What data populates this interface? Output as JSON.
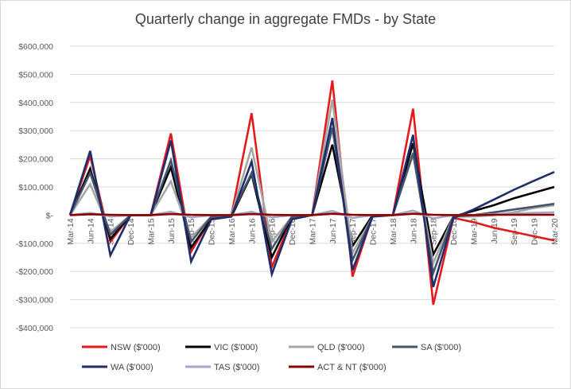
{
  "chart_data": {
    "type": "line",
    "title": "Quarterly change in aggregate FMDs - by State",
    "xlabel": "",
    "ylabel": "",
    "categories": [
      "Mar-14",
      "Jun-14",
      "Sep-14",
      "Dec-14",
      "Mar-15",
      "Jun-15",
      "Sep-15",
      "Dec-15",
      "Mar-16",
      "Jun-16",
      "Sep-16",
      "Dec-16",
      "Mar-17",
      "Jun-17",
      "Sep-17",
      "Dec-17",
      "Mar-18",
      "Jun-18",
      "Sep-18",
      "Dec-18",
      "Mar-19",
      "Jun-19",
      "Sep-19",
      "Dec-19",
      "Mar-20"
    ],
    "ylim": [
      -400000,
      600000
    ],
    "yticks": [
      600000,
      500000,
      400000,
      300000,
      200000,
      100000,
      0,
      -100000,
      -200000,
      -300000,
      -400000
    ],
    "ytick_labels": [
      "$600,000",
      "$500,000",
      "$400,000",
      "$300,000",
      "$200,000",
      "$100,000",
      "$-",
      "-$100,000",
      "-$200,000",
      "-$300,000",
      "-$400,000"
    ],
    "legend_position": "bottom",
    "grid": true,
    "series": [
      {
        "name": "NSW ($'000)",
        "color": "#e31a1c",
        "width": 2.6,
        "values": [
          0,
          210000,
          -95000,
          0,
          0,
          290000,
          -130000,
          -10000,
          0,
          362000,
          -185000,
          -10000,
          0,
          478000,
          -218000,
          0,
          0,
          378000,
          -318000,
          -10000,
          -25000,
          -45000,
          -60000,
          -75000,
          -90000
        ]
      },
      {
        "name": "VIC ($'000)",
        "color": "#000000",
        "width": 2.6,
        "values": [
          0,
          165000,
          -85000,
          0,
          0,
          170000,
          -115000,
          -15000,
          -5000,
          145000,
          -150000,
          -5000,
          0,
          250000,
          -110000,
          0,
          0,
          255000,
          -140000,
          -5000,
          15000,
          35000,
          60000,
          80000,
          100000
        ]
      },
      {
        "name": "QLD ($'000)",
        "color": "#a6a6a6",
        "width": 2.6,
        "values": [
          0,
          110000,
          -60000,
          0,
          0,
          120000,
          -80000,
          -5000,
          0,
          240000,
          -95000,
          -5000,
          0,
          410000,
          -135000,
          -5000,
          0,
          215000,
          -170000,
          -5000,
          -5000,
          0,
          10000,
          25000,
          35000
        ]
      },
      {
        "name": "SA ($'000)",
        "color": "#44546a",
        "width": 2.6,
        "values": [
          0,
          150000,
          -70000,
          0,
          0,
          195000,
          -95000,
          -5000,
          0,
          150000,
          -120000,
          -5000,
          0,
          310000,
          -160000,
          -5000,
          0,
          220000,
          -205000,
          -5000,
          0,
          10000,
          20000,
          30000,
          40000
        ]
      },
      {
        "name": "WA ($'000)",
        "color": "#1f2d6b",
        "width": 2.6,
        "values": [
          0,
          228000,
          -143000,
          0,
          0,
          265000,
          -165000,
          -15000,
          -5000,
          190000,
          -210000,
          -15000,
          0,
          345000,
          -195000,
          -5000,
          0,
          285000,
          -255000,
          -10000,
          20000,
          55000,
          90000,
          122000,
          153000
        ]
      },
      {
        "name": "TAS ($'000)",
        "color": "#a6a6c8",
        "width": 2.6,
        "values": [
          0,
          8000,
          -5000,
          0,
          0,
          12000,
          -8000,
          0,
          0,
          12000,
          -8000,
          0,
          0,
          15000,
          -10000,
          0,
          0,
          16000,
          -12000,
          0,
          0,
          3000,
          5000,
          8000,
          10000
        ]
      },
      {
        "name": "ACT & NT ($'000)",
        "color": "#8b0000",
        "width": 2.6,
        "values": [
          0,
          3000,
          1000,
          0,
          0,
          4000,
          1000,
          0,
          0,
          4000,
          1000,
          0,
          0,
          5000,
          1000,
          0,
          0,
          5000,
          1000,
          0,
          0,
          1000,
          1000,
          1000,
          1000
        ]
      }
    ]
  }
}
